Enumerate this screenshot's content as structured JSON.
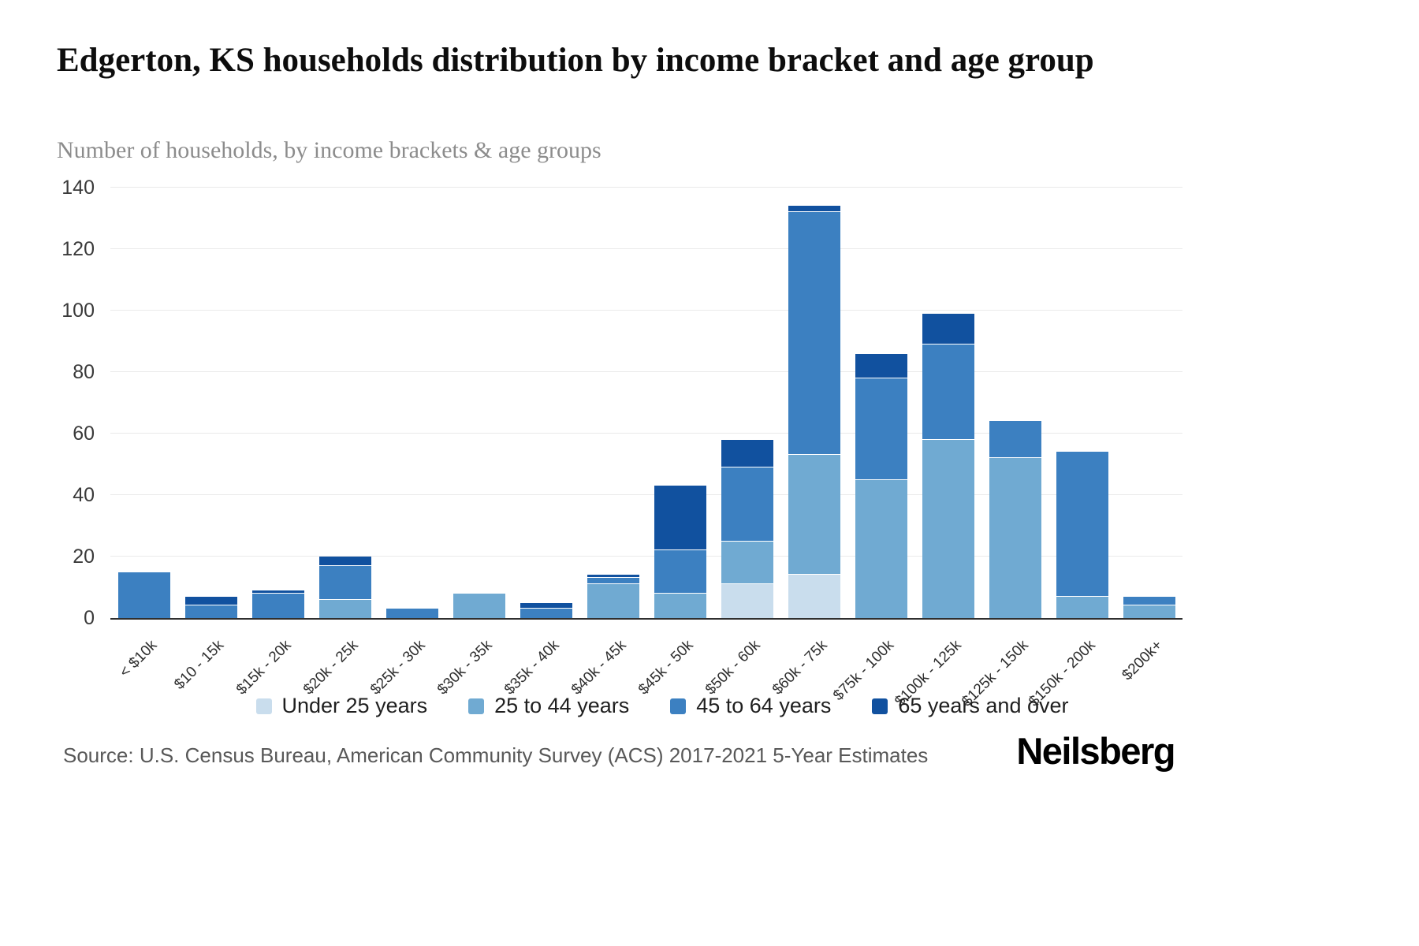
{
  "header": {
    "title": "Edgerton, KS households distribution by income bracket and age group",
    "subtitle": "Number of households, by income brackets & age groups"
  },
  "chart_data": {
    "type": "bar",
    "stacked": true,
    "title": "Edgerton, KS households distribution by income bracket and age group",
    "subtitle": "Number of households, by income brackets & age groups",
    "xlabel": "",
    "ylabel": "",
    "ylim": [
      0,
      140
    ],
    "yticks": [
      0,
      20,
      40,
      60,
      80,
      100,
      120,
      140
    ],
    "grid": "horizontal",
    "legend_position": "bottom",
    "categories": [
      "< $10k",
      "$10 - 15k",
      "$15k - 20k",
      "$20k - 25k",
      "$25k - 30k",
      "$30k - 35k",
      "$35k - 40k",
      "$40k - 45k",
      "$45k - 50k",
      "$50k - 60k",
      "$60k - 75k",
      "$75k - 100k",
      "$100k - 125k",
      "$125k - 150k",
      "$150k - 200k",
      "$200k+"
    ],
    "series": [
      {
        "name": "Under 25 years",
        "color": "#c9dded",
        "values": [
          0,
          0,
          0,
          0,
          0,
          0,
          0,
          0,
          0,
          11,
          14,
          0,
          0,
          0,
          0,
          0
        ]
      },
      {
        "name": "25 to 44 years",
        "color": "#70aad2",
        "values": [
          0,
          0,
          0,
          6,
          0,
          8,
          0,
          11,
          8,
          14,
          39,
          45,
          58,
          52,
          7,
          4
        ]
      },
      {
        "name": "45 to 64 years",
        "color": "#3c80c1",
        "values": [
          15,
          4,
          8,
          11,
          3,
          0,
          3,
          2,
          14,
          24,
          79,
          33,
          31,
          12,
          47,
          3
        ]
      },
      {
        "name": "65 years and over",
        "color": "#11519f",
        "values": [
          0,
          3,
          1,
          3,
          0,
          0,
          2,
          1,
          21,
          9,
          2,
          8,
          10,
          0,
          0,
          0
        ]
      }
    ]
  },
  "footer": {
    "source": "Source: U.S. Census Bureau, American Community Survey (ACS) 2017-2021 5-Year Estimates",
    "brand": "Neilsberg"
  }
}
